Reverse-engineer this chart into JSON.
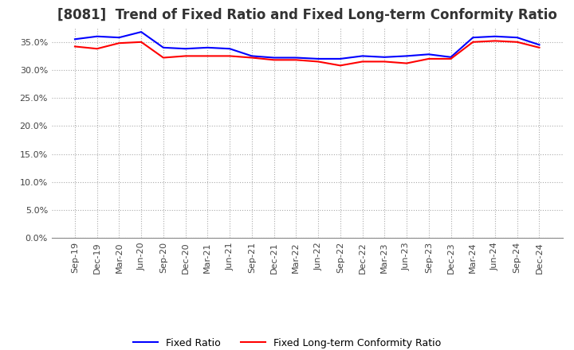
{
  "title": "[8081]  Trend of Fixed Ratio and Fixed Long-term Conformity Ratio",
  "x_labels": [
    "Sep-19",
    "Dec-19",
    "Mar-20",
    "Jun-20",
    "Sep-20",
    "Dec-20",
    "Mar-21",
    "Jun-21",
    "Sep-21",
    "Dec-21",
    "Mar-22",
    "Jun-22",
    "Sep-22",
    "Dec-22",
    "Mar-23",
    "Jun-23",
    "Sep-23",
    "Dec-23",
    "Mar-24",
    "Jun-24",
    "Sep-24",
    "Dec-24"
  ],
  "fixed_ratio": [
    35.5,
    36.0,
    35.8,
    36.8,
    34.0,
    33.8,
    34.0,
    33.8,
    32.5,
    32.2,
    32.2,
    32.0,
    32.0,
    32.5,
    32.3,
    32.5,
    32.8,
    32.3,
    35.8,
    36.0,
    35.8,
    34.5
  ],
  "fixed_lt_ratio": [
    34.2,
    33.8,
    34.8,
    35.0,
    32.2,
    32.5,
    32.5,
    32.5,
    32.2,
    31.8,
    31.8,
    31.5,
    30.8,
    31.5,
    31.5,
    31.2,
    32.0,
    32.0,
    35.0,
    35.2,
    35.0,
    34.0
  ],
  "fixed_ratio_color": "#0000FF",
  "fixed_lt_ratio_color": "#FF0000",
  "ylim": [
    0.0,
    37.5
  ],
  "yticks": [
    0.0,
    5.0,
    10.0,
    15.0,
    20.0,
    25.0,
    30.0,
    35.0
  ],
  "background_color": "#FFFFFF",
  "grid_color": "#AAAAAA",
  "title_fontsize": 12,
  "legend_labels": [
    "Fixed Ratio",
    "Fixed Long-term Conformity Ratio"
  ]
}
